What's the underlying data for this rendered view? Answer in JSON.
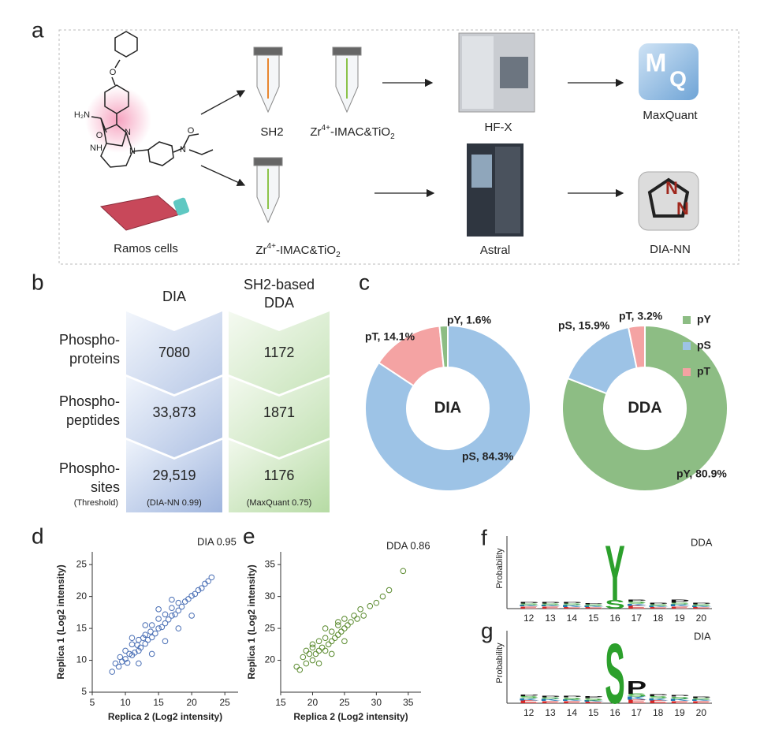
{
  "panel_labels": [
    "a",
    "b",
    "c",
    "d",
    "e",
    "f",
    "g"
  ],
  "workflow": {
    "sh2": "SH2",
    "zr_top": [
      "Zr",
      "4+",
      "-IMAC&TiO",
      "2"
    ],
    "zr_bottom": [
      "Zr",
      "4+",
      "-IMAC&TiO",
      "2"
    ],
    "instrument_top": "HF-X",
    "instrument_bottom": "Astral",
    "software_top": "MaxQuant",
    "software_bottom": "DIA-NN",
    "cells": "Ramos cells",
    "mq_icon": [
      "M",
      "Q"
    ],
    "diann_icon": [
      "N",
      "N"
    ],
    "structure_labels": [
      "O",
      "H₂N",
      "O",
      "NH",
      "N",
      "N",
      "N",
      "O"
    ]
  },
  "summary": {
    "columns": [
      [
        "DIA"
      ],
      [
        "SH2-based",
        "DDA"
      ]
    ],
    "rows": [
      {
        "label": [
          "Phospho-",
          "proteins"
        ],
        "values": [
          "7080",
          "1172"
        ]
      },
      {
        "label": [
          "Phospho-",
          "peptides"
        ],
        "values": [
          "33,873",
          "1871"
        ]
      },
      {
        "label": [
          "Phospho-",
          "sites"
        ],
        "note": "(Threshold)",
        "values": [
          "29,519",
          "1176"
        ],
        "value_notes": [
          "(DIA-NN 0.99)",
          "(MaxQuant 0.75)"
        ]
      }
    ]
  },
  "chart_data": [
    {
      "type": "donut",
      "center_label": "DIA",
      "categories": [
        "pS",
        "pT",
        "pY"
      ],
      "values": [
        84.3,
        14.1,
        1.6
      ],
      "value_labels": [
        "pS, 84.3%",
        "pT, 14.1%",
        "pY, 1.6%"
      ],
      "colors": [
        "#9dc3e6",
        "#f4a3a3",
        "#8dbd84"
      ]
    },
    {
      "type": "donut",
      "center_label": "DDA",
      "categories": [
        "pY",
        "pS",
        "pT"
      ],
      "values": [
        80.9,
        15.9,
        3.2
      ],
      "value_labels": [
        "pY, 80.9%",
        "pS, 15.9%",
        "pT, 3.2%"
      ],
      "colors": [
        "#8dbd84",
        "#9dc3e6",
        "#f4a3a3"
      ],
      "legend": "right"
    },
    {
      "type": "scatter",
      "annotation": "DIA 0.95",
      "x_label": "Replica 2 (Log2 intensity)",
      "y_label": "Replica 1 (Log2 intensity)",
      "color": "#4a6fb5",
      "xlim": [
        5,
        27
      ],
      "ylim": [
        5,
        27
      ],
      "xticks": [
        5,
        10,
        15,
        20,
        25
      ],
      "yticks": [
        5,
        10,
        15,
        20,
        25
      ],
      "x": [
        8,
        8.5,
        9,
        9.2,
        9.5,
        10,
        10,
        10.3,
        10.6,
        11,
        11,
        11.4,
        11.8,
        12,
        12,
        12.3,
        12.7,
        13,
        13,
        13.4,
        13.8,
        14,
        14,
        14.5,
        15,
        15,
        15.5,
        16,
        16,
        16.5,
        17,
        17,
        17.5,
        18,
        18,
        18.5,
        19,
        19.5,
        20,
        20.5,
        21,
        21.5,
        22,
        22.5,
        23,
        12,
        14,
        16,
        18,
        20,
        11,
        13,
        15,
        17
      ],
      "values": [
        8.2,
        9.5,
        9,
        10.5,
        9.8,
        10.2,
        11.5,
        9.6,
        11,
        10.8,
        12.5,
        11.2,
        12.4,
        11.5,
        13.2,
        12,
        13.5,
        12.6,
        14,
        13.2,
        14.5,
        13.6,
        15.5,
        14.2,
        15,
        16.5,
        15.2,
        15.8,
        17.2,
        16.4,
        17,
        18.2,
        17.2,
        17.8,
        19,
        18.4,
        19.2,
        19.6,
        20.1,
        20.4,
        21,
        21.3,
        22,
        22.4,
        23,
        9.5,
        11,
        13,
        15,
        17,
        13.5,
        15.5,
        18,
        19.5
      ]
    },
    {
      "type": "scatter",
      "annotation": "DDA 0.86",
      "x_label": "Replica 2 (Log2 intensity)",
      "y_label": "Replica 1 (Log2 intensity)",
      "color": "#5a8a2e",
      "xlim": [
        15,
        37
      ],
      "ylim": [
        15,
        37
      ],
      "xticks": [
        15,
        20,
        25,
        30,
        35
      ],
      "yticks": [
        20,
        25,
        30,
        35
      ],
      "x": [
        17.5,
        18,
        18.5,
        19,
        19.5,
        20,
        20,
        20.5,
        21,
        21,
        21.5,
        22,
        22,
        22.5,
        23,
        23,
        23.5,
        24,
        24,
        24.5,
        25,
        25,
        25.5,
        26,
        26.5,
        27,
        27.5,
        28,
        29,
        30,
        31,
        32,
        34.2,
        19,
        21,
        23,
        25,
        22,
        20,
        24
      ],
      "values": [
        19,
        18.5,
        20.5,
        19.5,
        21,
        20,
        22,
        21,
        21.5,
        23,
        22,
        21.5,
        23.5,
        22.5,
        23,
        24.5,
        23.5,
        24,
        25.5,
        24.5,
        25,
        26.5,
        25.5,
        26,
        27,
        26.5,
        28,
        27,
        28.5,
        29,
        30,
        31,
        34,
        21.5,
        19.5,
        21,
        23,
        25,
        22.5,
        26
      ]
    },
    {
      "type": "logo",
      "annotation": "DDA",
      "y_label": "Probability",
      "ylim": [
        0,
        1
      ],
      "categories": [
        "12",
        "13",
        "14",
        "15",
        "16",
        "17",
        "18",
        "19",
        "20"
      ],
      "series": [
        {
          "name": "E",
          "color": "#d62728",
          "values": [
            0.03,
            0.03,
            0.02,
            0.02,
            0,
            0.04,
            0.02,
            0.03,
            0.02
          ]
        },
        {
          "name": "K",
          "color": "#1f77b4",
          "values": [
            0.02,
            0.02,
            0.03,
            0.02,
            0,
            0.03,
            0.02,
            0.03,
            0.02
          ]
        },
        {
          "name": "S",
          "color": "#2ca02c",
          "values": [
            0.02,
            0.02,
            0.02,
            0.02,
            0.12,
            0.03,
            0.02,
            0.02,
            0.02
          ]
        },
        {
          "name": "P",
          "color": "#111111",
          "values": [
            0.02,
            0.02,
            0.02,
            0.01,
            0,
            0.03,
            0.02,
            0.04,
            0.02
          ]
        },
        {
          "name": "Y",
          "color": "#2ca02c",
          "values": [
            0,
            0,
            0,
            0,
            0.78,
            0,
            0,
            0,
            0
          ]
        }
      ]
    },
    {
      "type": "logo",
      "annotation": "DIA",
      "y_label": "Probability",
      "ylim": [
        0,
        1
      ],
      "categories": [
        "12",
        "13",
        "14",
        "15",
        "16",
        "17",
        "18",
        "19",
        "20"
      ],
      "series": [
        {
          "name": "E",
          "color": "#d62728",
          "values": [
            0.04,
            0.03,
            0.03,
            0.02,
            0,
            0.05,
            0.04,
            0.03,
            0.03
          ]
        },
        {
          "name": "K",
          "color": "#1f77b4",
          "values": [
            0.03,
            0.03,
            0.02,
            0.02,
            0,
            0.04,
            0.03,
            0.03,
            0.02
          ]
        },
        {
          "name": "S",
          "color": "#2ca02c",
          "values": [
            0.03,
            0.02,
            0.03,
            0.03,
            0.85,
            0.04,
            0.03,
            0.03,
            0.02
          ]
        },
        {
          "name": "P",
          "color": "#111111",
          "values": [
            0.02,
            0.02,
            0.02,
            0.03,
            0,
            0.18,
            0.03,
            0.02,
            0.02
          ]
        }
      ]
    }
  ]
}
